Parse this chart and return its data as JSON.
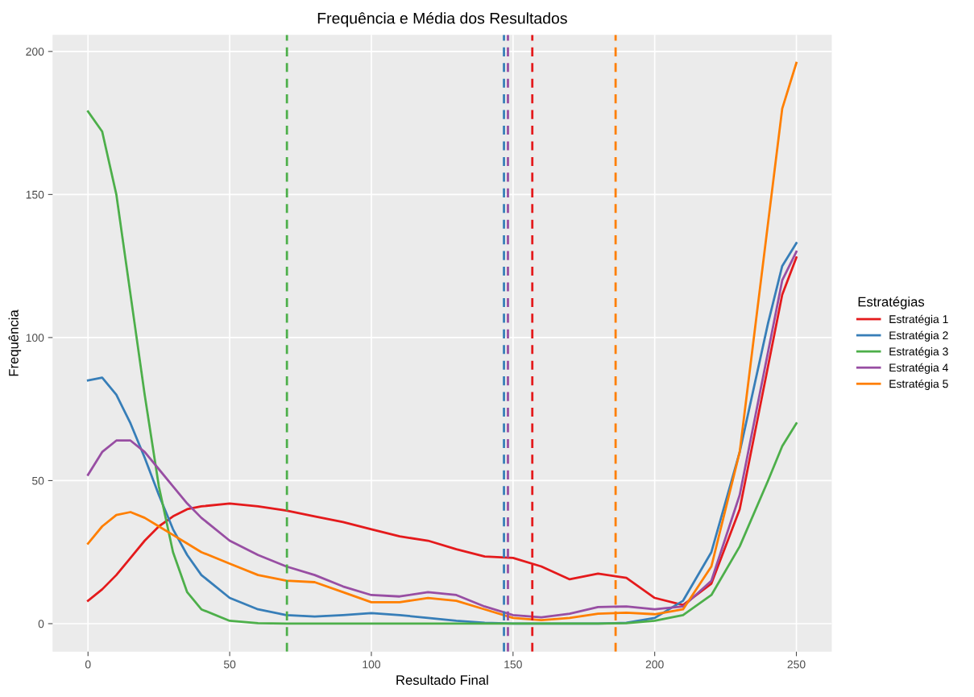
{
  "chart_data": {
    "type": "line",
    "title": "Frequência e Média dos Resultados",
    "xlabel": "Resultado Final",
    "ylabel": "Frequência",
    "legend_title": "Estratégias",
    "legend": "right",
    "x": [
      0,
      5,
      10,
      15,
      20,
      25,
      30,
      35,
      40,
      50,
      60,
      70,
      80,
      90,
      100,
      110,
      120,
      130,
      140,
      150,
      160,
      170,
      180,
      190,
      200,
      210,
      220,
      230,
      240,
      245,
      250
    ],
    "series": [
      {
        "name": "Estratégia 1",
        "color": "#e41a1c",
        "values": [
          8,
          12,
          17,
          23,
          29,
          34,
          37.5,
          40,
          41,
          42,
          41,
          39.5,
          37.5,
          35.5,
          33,
          30.5,
          29,
          26,
          23.5,
          23,
          20,
          15.5,
          17.5,
          16,
          9,
          6.5,
          14,
          40,
          90,
          115,
          128
        ]
      },
      {
        "name": "Estratégia 2",
        "color": "#377eb8",
        "values": [
          85,
          86,
          80,
          70,
          58,
          45,
          33,
          24,
          17,
          9,
          5,
          3,
          2.5,
          3,
          3.7,
          3,
          2,
          1,
          0.3,
          0,
          0,
          0,
          0,
          0.3,
          2,
          8,
          25,
          60,
          105,
          125,
          133
        ]
      },
      {
        "name": "Estratégia 3",
        "color": "#4daf4a",
        "values": [
          179,
          172,
          150,
          115,
          80,
          48,
          25,
          11,
          5,
          1,
          0.2,
          0,
          0,
          0,
          0,
          0,
          0,
          0,
          0,
          0,
          0,
          0,
          0,
          0.2,
          1,
          3,
          10,
          27,
          50,
          62,
          70
        ]
      },
      {
        "name": "Estratégia 4",
        "color": "#984ea3",
        "values": [
          52,
          60,
          64,
          64,
          60,
          54,
          48,
          42,
          37,
          29,
          24,
          20,
          17,
          13,
          10,
          9.5,
          11,
          10,
          6,
          3,
          2.2,
          3.5,
          5.8,
          6,
          5,
          6,
          15,
          45,
          95,
          120,
          130
        ]
      },
      {
        "name": "Estratégia 5",
        "color": "#ff7f00",
        "values": [
          28,
          34,
          38,
          39,
          37,
          34,
          31,
          28,
          25,
          21,
          17,
          15,
          14.5,
          11,
          7.5,
          7.5,
          9,
          8,
          5,
          2,
          1.2,
          2,
          3.5,
          3.8,
          3.3,
          5,
          20,
          60,
          140,
          180,
          196
        ]
      }
    ],
    "ref_lines": [
      {
        "axis": "x",
        "value": 156.8,
        "color": "#e41a1c",
        "line_style": "dashed"
      },
      {
        "axis": "x",
        "value": 146.8,
        "color": "#377eb8",
        "line_style": "dashed"
      },
      {
        "axis": "x",
        "value": 70.2,
        "color": "#4daf4a",
        "line_style": "dashed"
      },
      {
        "axis": "x",
        "value": 148.2,
        "color": "#984ea3",
        "line_style": "dashed"
      },
      {
        "axis": "x",
        "value": 186.2,
        "color": "#ff7f00",
        "line_style": "dashed"
      }
    ],
    "xlim": [
      -12.5,
      262.5
    ],
    "xticks": [
      0,
      50,
      100,
      150,
      200,
      250
    ],
    "ylim": [
      -9.8,
      205.8
    ],
    "yticks": [
      0,
      50,
      100,
      150,
      200
    ],
    "grid": true,
    "line_style": "solid",
    "marker": "none"
  }
}
